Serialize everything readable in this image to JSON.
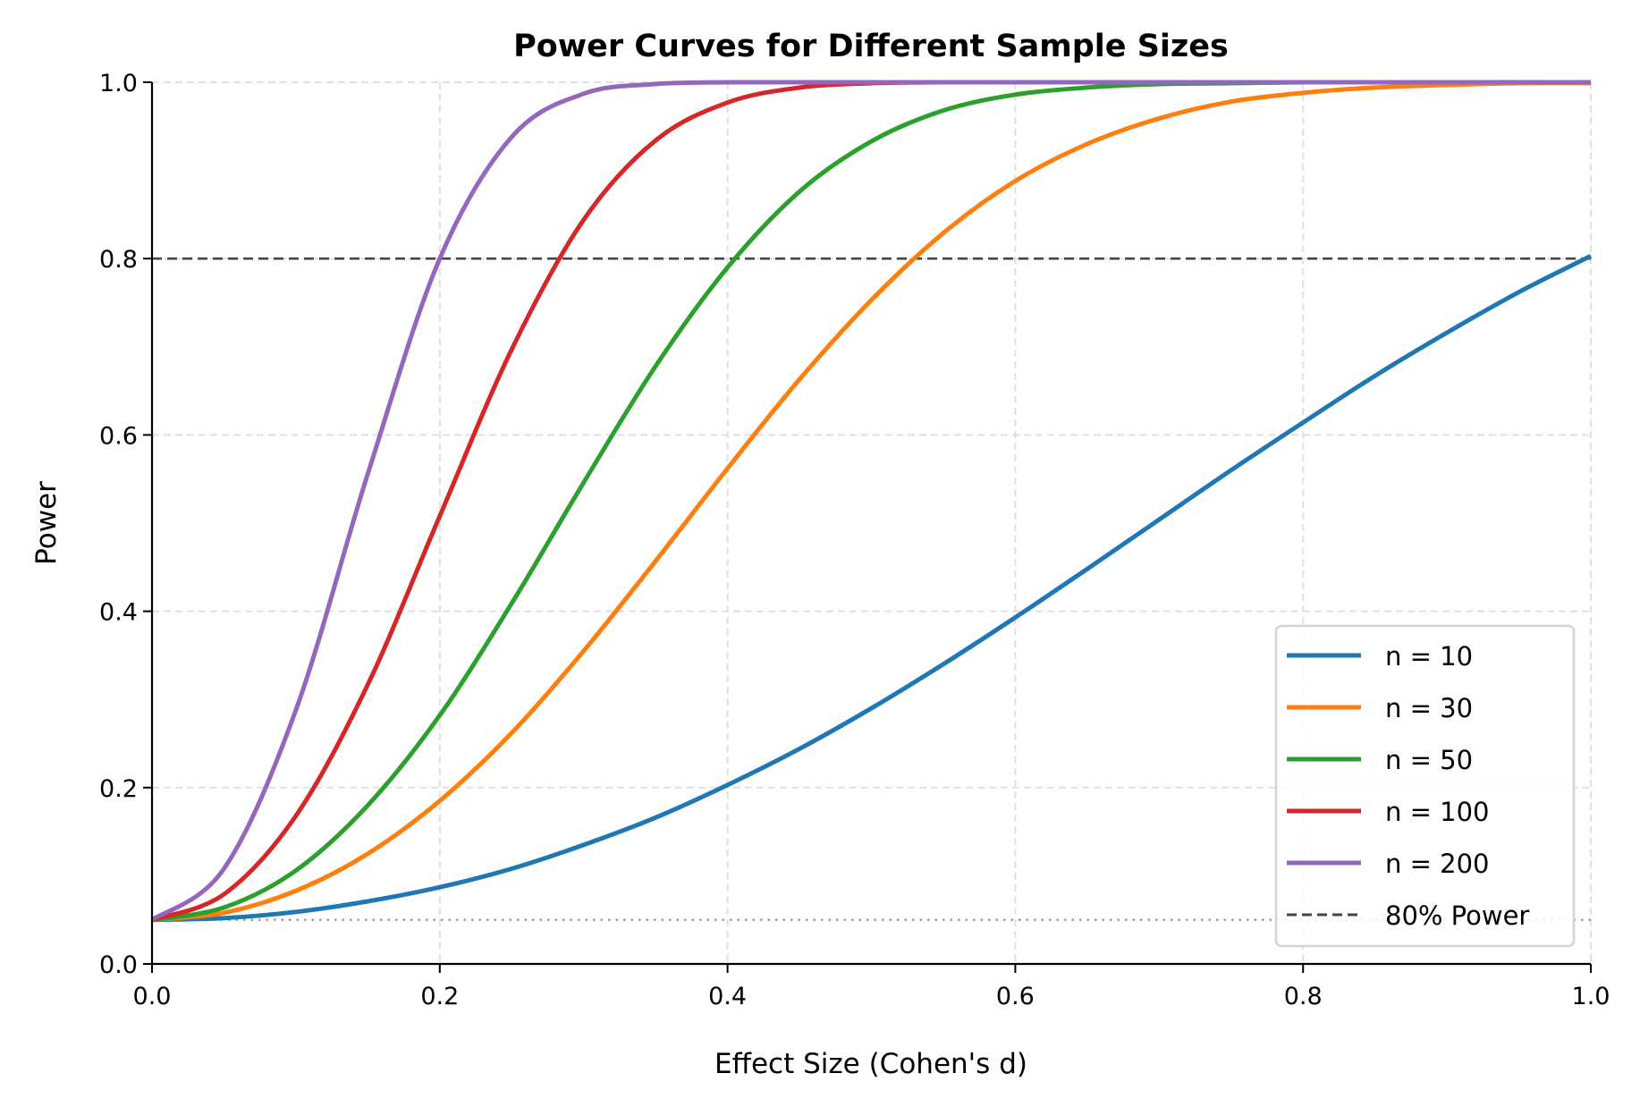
{
  "chart_data": {
    "type": "line",
    "title": "Power Curves for Different Sample Sizes",
    "xlabel": "Effect Size (Cohen's d)",
    "ylabel": "Power",
    "xlim": [
      0,
      1
    ],
    "ylim": [
      0,
      1
    ],
    "grid": true,
    "legend_position": "bottom-right",
    "xticks": [
      "0.0",
      "0.2",
      "0.4",
      "0.6",
      "0.8",
      "1.0"
    ],
    "yticks": [
      "0.0",
      "0.2",
      "0.4",
      "0.6",
      "0.8",
      "1.0"
    ],
    "x": [
      0,
      0.05,
      0.1,
      0.15,
      0.2,
      0.25,
      0.3,
      0.35,
      0.4,
      0.45,
      0.5,
      0.55,
      0.6,
      0.65,
      0.7,
      0.75,
      0.8,
      0.85,
      0.9,
      0.95,
      1.0
    ],
    "series": [
      {
        "name": "n = 10",
        "color": "#1f77b4",
        "values": [
          0.05,
          0.052,
          0.059,
          0.071,
          0.087,
          0.108,
          0.135,
          0.166,
          0.203,
          0.244,
          0.29,
          0.34,
          0.393,
          0.448,
          0.504,
          0.56,
          0.614,
          0.667,
          0.716,
          0.762,
          0.803
        ]
      },
      {
        "name": "n = 30",
        "color": "#ff7f0e",
        "values": [
          0.05,
          0.058,
          0.083,
          0.125,
          0.185,
          0.262,
          0.355,
          0.457,
          0.562,
          0.663,
          0.753,
          0.829,
          0.888,
          0.93,
          0.959,
          0.978,
          0.988,
          0.994,
          0.997,
          0.999,
          0.999
        ]
      },
      {
        "name": "n = 50",
        "color": "#2ca02c",
        "values": [
          0.05,
          0.064,
          0.106,
          0.18,
          0.282,
          0.409,
          0.546,
          0.678,
          0.79,
          0.876,
          0.933,
          0.968,
          0.986,
          0.994,
          0.998,
          0.999,
          1.0,
          1.0,
          1.0,
          1.0,
          1.0
        ]
      },
      {
        "name": "n = 100",
        "color": "#d62728",
        "values": [
          0.05,
          0.079,
          0.168,
          0.317,
          0.508,
          0.697,
          0.844,
          0.934,
          0.977,
          0.994,
          0.999,
          1.0,
          1.0,
          1.0,
          1.0,
          1.0,
          1.0,
          1.0,
          1.0,
          1.0,
          1.0
        ]
      },
      {
        "name": "n = 200",
        "color": "#9467bd",
        "values": [
          0.05,
          0.108,
          0.288,
          0.556,
          0.8,
          0.938,
          0.987,
          0.998,
          1.0,
          1.0,
          1.0,
          1.0,
          1.0,
          1.0,
          1.0,
          1.0,
          1.0,
          1.0,
          1.0,
          1.0,
          1.0
        ]
      }
    ],
    "reference_lines": [
      {
        "name": "80% Power",
        "y": 0.8,
        "style": "dashed",
        "color": "#444444"
      },
      {
        "y": 0.05,
        "style": "dotted",
        "color": "#999999"
      }
    ]
  }
}
